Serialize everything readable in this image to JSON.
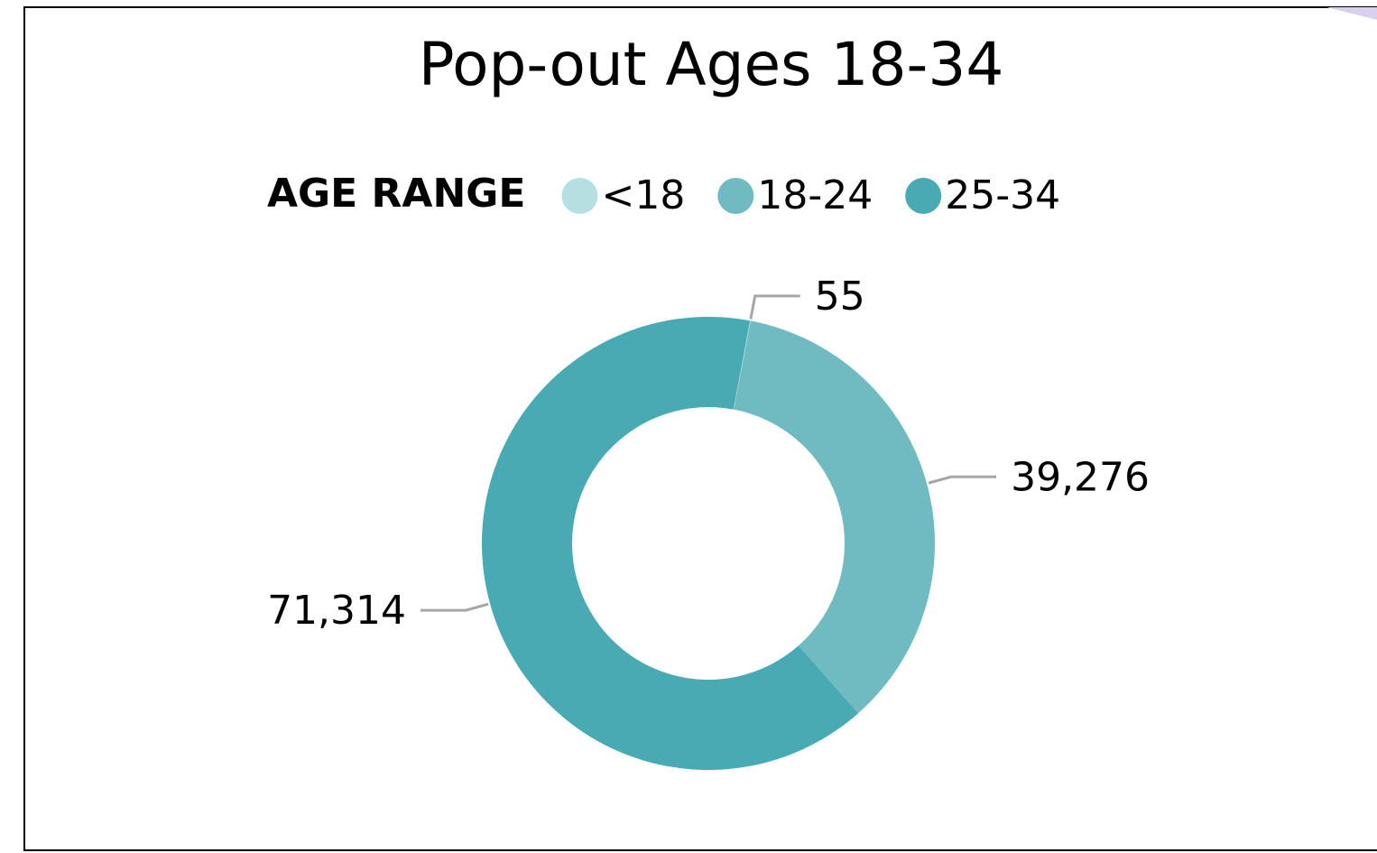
{
  "chart_data": {
    "type": "donut",
    "title": "Pop-out Ages 18-34",
    "legend_title": "AGE RANGE",
    "legend_position": "top",
    "categories": [
      "<18",
      "18-24",
      "25-34"
    ],
    "values": [
      55,
      39276,
      71314
    ],
    "value_labels": [
      "55",
      "39,276",
      "71,314"
    ],
    "colors": [
      "#b5dfe1",
      "#6fbbc1",
      "#48aab3"
    ]
  }
}
